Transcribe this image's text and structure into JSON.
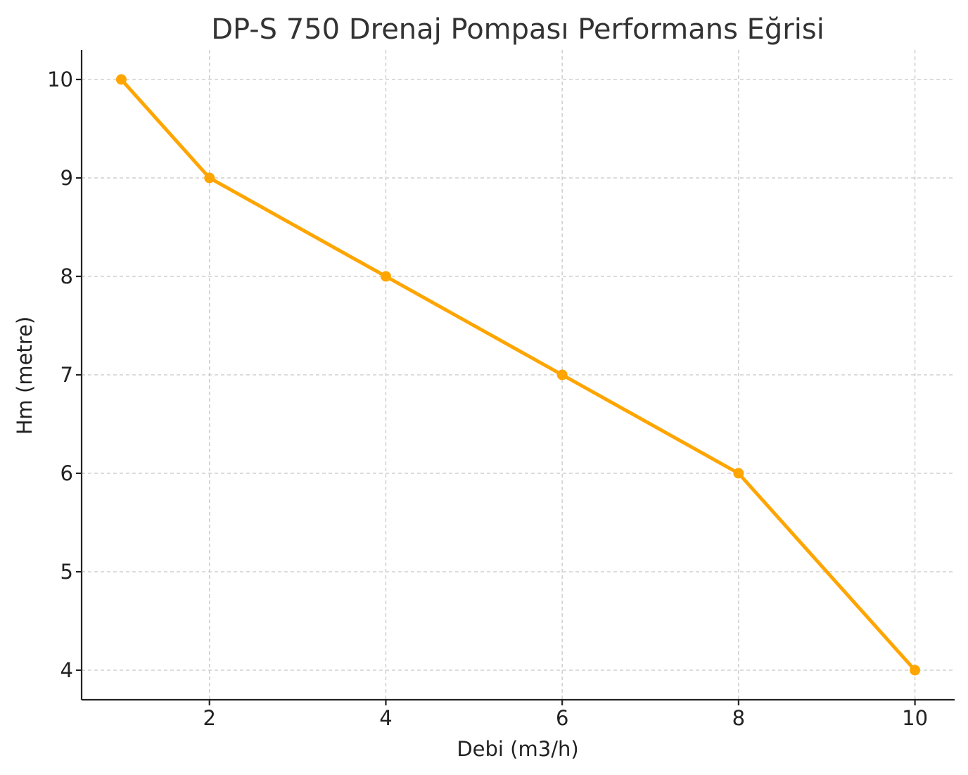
{
  "chart_data": {
    "type": "line",
    "title": "DP-S 750 Drenaj Pompası Performans Eğrisi",
    "xlabel": "Debi (m3/h)",
    "ylabel": "Hm (metre)",
    "x": [
      1,
      2,
      4,
      6,
      8,
      10
    ],
    "series": [
      {
        "values": [
          10,
          9,
          8,
          7,
          6,
          4
        ],
        "color": "#FFA500",
        "marker": "circle"
      }
    ],
    "xlim": [
      0.55,
      10.45
    ],
    "ylim": [
      3.7,
      10.3
    ],
    "xticks": [
      2,
      4,
      6,
      8,
      10
    ],
    "yticks": [
      4,
      5,
      6,
      7,
      8,
      9,
      10
    ],
    "xtick_labels": [
      "2",
      "4",
      "6",
      "8",
      "10"
    ],
    "ytick_labels": [
      "4",
      "5",
      "6",
      "7",
      "8",
      "9",
      "10"
    ],
    "grid": true,
    "grid_style": "dashed",
    "legend": false
  }
}
